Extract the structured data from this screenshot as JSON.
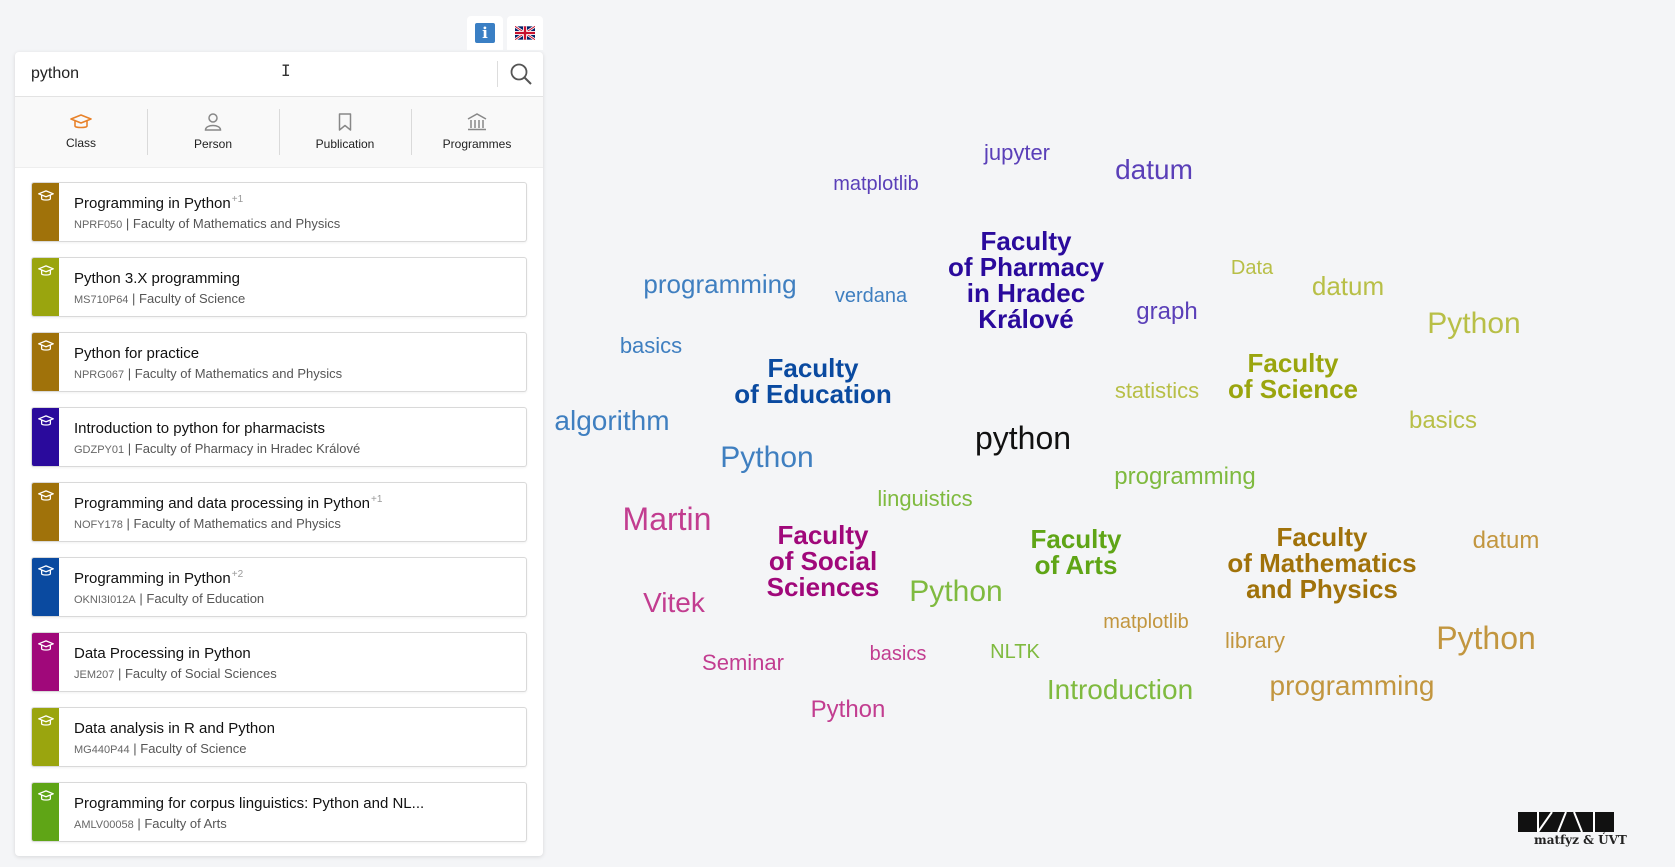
{
  "top_buttons": {
    "info_label": "i"
  },
  "search": {
    "value": "python",
    "placeholder": ""
  },
  "tabs": [
    {
      "label": "Class"
    },
    {
      "label": "Person"
    },
    {
      "label": "Publication"
    },
    {
      "label": "Programmes"
    }
  ],
  "results": [
    {
      "title": "Programming in Python",
      "sup": "+1",
      "code": "NPRF050",
      "faculty": "Faculty of Mathematics and Physics",
      "color": "#a0720a"
    },
    {
      "title": "Python 3.X programming",
      "sup": "",
      "code": "MS710P64",
      "faculty": "Faculty of Science",
      "color": "#9aa50e"
    },
    {
      "title": "Python for practice",
      "sup": "",
      "code": "NPRG067",
      "faculty": "Faculty of Mathematics and Physics",
      "color": "#a0720a"
    },
    {
      "title": "Introduction to python for pharmacists",
      "sup": "",
      "code": "GDZPY01",
      "faculty": "Faculty of Pharmacy in Hradec Králové",
      "color": "#2a0a9c"
    },
    {
      "title": "Programming and data processing in Python",
      "sup": "+1",
      "code": "NOFY178",
      "faculty": "Faculty of Mathematics and Physics",
      "color": "#a0720a"
    },
    {
      "title": "Programming in Python",
      "sup": "+2",
      "code": "OKNI3I012A",
      "faculty": "Faculty of Education",
      "color": "#0a4aa0"
    },
    {
      "title": "Data Processing in Python",
      "sup": "",
      "code": "JEM207",
      "faculty": "Faculty of Social Sciences",
      "color": "#a0087a"
    },
    {
      "title": "Data analysis in R and Python",
      "sup": "",
      "code": "MG440P44",
      "faculty": "Faculty of Science",
      "color": "#9aa50e"
    },
    {
      "title": "Programming for corpus linguistics: Python and NL...",
      "sup": "",
      "code": "AMLV00058",
      "faculty": "Faculty of Arts",
      "color": "#5fa516"
    }
  ],
  "word_cloud": [
    {
      "text": "jupyter",
      "size": 22,
      "color": "#5a3fb8",
      "bold": false
    },
    {
      "text": "datum",
      "size": 28,
      "color": "#5a3fb8",
      "bold": false
    },
    {
      "text": "matplotlib",
      "size": 20,
      "color": "#5a3fb8",
      "bold": false
    },
    {
      "text": "Faculty of Pharmacy in Hradec Králové",
      "size": 26,
      "color": "#2a0a9c",
      "bold": true,
      "lines": [
        "Faculty",
        "of Pharmacy",
        "in Hradec",
        "Králové"
      ]
    },
    {
      "text": "programming",
      "size": 26,
      "color": "#3f7fc0",
      "bold": false
    },
    {
      "text": "verdana",
      "size": 20,
      "color": "#3f7fc0",
      "bold": false
    },
    {
      "text": "Data",
      "size": 20,
      "color": "#b8bf47",
      "bold": false
    },
    {
      "text": "datum",
      "size": 26,
      "color": "#b8bf47",
      "bold": false
    },
    {
      "text": "graph",
      "size": 24,
      "color": "#5a3fb8",
      "bold": false
    },
    {
      "text": "Python",
      "size": 30,
      "color": "#b8bf47",
      "bold": false
    },
    {
      "text": "basics",
      "size": 22,
      "color": "#3f7fc0",
      "bold": false
    },
    {
      "text": "Faculty of Education",
      "size": 26,
      "color": "#0a4aa0",
      "bold": true,
      "lines": [
        "Faculty",
        "of Education"
      ]
    },
    {
      "text": "Faculty of Science",
      "size": 26,
      "color": "#9aa50e",
      "bold": true,
      "lines": [
        "Faculty",
        "of Science"
      ]
    },
    {
      "text": "statistics",
      "size": 22,
      "color": "#b8bf47",
      "bold": false
    },
    {
      "text": "basics",
      "size": 24,
      "color": "#b8bf47",
      "bold": false
    },
    {
      "text": "algorithm",
      "size": 28,
      "color": "#3f7fc0",
      "bold": false
    },
    {
      "text": "python",
      "size": 32,
      "color": "#111111",
      "bold": false
    },
    {
      "text": "Python",
      "size": 30,
      "color": "#3f7fc0",
      "bold": false
    },
    {
      "text": "programming",
      "size": 24,
      "color": "#7fba3f",
      "bold": false
    },
    {
      "text": "linguistics",
      "size": 22,
      "color": "#7fba3f",
      "bold": false
    },
    {
      "text": "Martin",
      "size": 32,
      "color": "#c23d90",
      "bold": false
    },
    {
      "text": "Faculty of Social Sciences",
      "size": 26,
      "color": "#a0087a",
      "bold": true,
      "lines": [
        "Faculty",
        "of Social",
        "Sciences"
      ]
    },
    {
      "text": "Faculty of Arts",
      "size": 26,
      "color": "#5fa516",
      "bold": true,
      "lines": [
        "Faculty",
        "of Arts"
      ]
    },
    {
      "text": "Faculty of Mathematics and Physics",
      "size": 26,
      "color": "#a0720a",
      "bold": true,
      "lines": [
        "Faculty",
        "of Mathematics",
        "and Physics"
      ]
    },
    {
      "text": "datum",
      "size": 24,
      "color": "#c2963f",
      "bold": false
    },
    {
      "text": "Python",
      "size": 30,
      "color": "#7fba3f",
      "bold": false
    },
    {
      "text": "Vitek",
      "size": 28,
      "color": "#c23d90",
      "bold": false
    },
    {
      "text": "matplotlib",
      "size": 20,
      "color": "#c2963f",
      "bold": false
    },
    {
      "text": "library",
      "size": 22,
      "color": "#c2963f",
      "bold": false
    },
    {
      "text": "Python",
      "size": 32,
      "color": "#c2963f",
      "bold": false
    },
    {
      "text": "Seminar",
      "size": 22,
      "color": "#c23d90",
      "bold": false
    },
    {
      "text": "basics",
      "size": 20,
      "color": "#c23d90",
      "bold": false
    },
    {
      "text": "NLTK",
      "size": 20,
      "color": "#7fba3f",
      "bold": false
    },
    {
      "text": "Introduction",
      "size": 28,
      "color": "#7fba3f",
      "bold": false
    },
    {
      "text": "programming",
      "size": 28,
      "color": "#c2963f",
      "bold": false
    },
    {
      "text": "Python",
      "size": 24,
      "color": "#c23d90",
      "bold": false
    }
  ],
  "footer": {
    "logo_text": "matfyz & ÚVT"
  },
  "colors": {
    "accent_active_tab": "#e8822a",
    "tab_icon": "#888888"
  }
}
